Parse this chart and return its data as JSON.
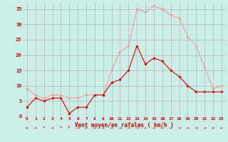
{
  "hours": [
    0,
    1,
    2,
    3,
    4,
    5,
    6,
    7,
    8,
    9,
    10,
    11,
    12,
    13,
    14,
    15,
    16,
    17,
    18,
    19,
    20,
    21,
    22,
    23
  ],
  "wind_mean": [
    3,
    6,
    5,
    6,
    6,
    1,
    3,
    3,
    7,
    7,
    11,
    12,
    15,
    23,
    17,
    19,
    18,
    15,
    13,
    10,
    8,
    8,
    8,
    8
  ],
  "wind_gust": [
    9,
    7,
    6,
    7,
    7,
    6,
    6,
    7,
    7,
    7,
    15,
    21,
    23,
    35,
    34,
    36,
    35,
    33,
    32,
    26,
    23,
    16,
    9,
    10
  ],
  "color_mean": "#dd0000",
  "color_gust": "#f0a0a0",
  "bg_color": "#cceee8",
  "grid_color": "#aaaaaa",
  "axis_color": "#cc0000",
  "xlabel": "Vent moyen/en rafales ( km/h )",
  "ylim": [
    0,
    37
  ],
  "yticks": [
    0,
    5,
    10,
    15,
    20,
    25,
    30,
    35
  ],
  "xlim": [
    -0.5,
    23.5
  ]
}
